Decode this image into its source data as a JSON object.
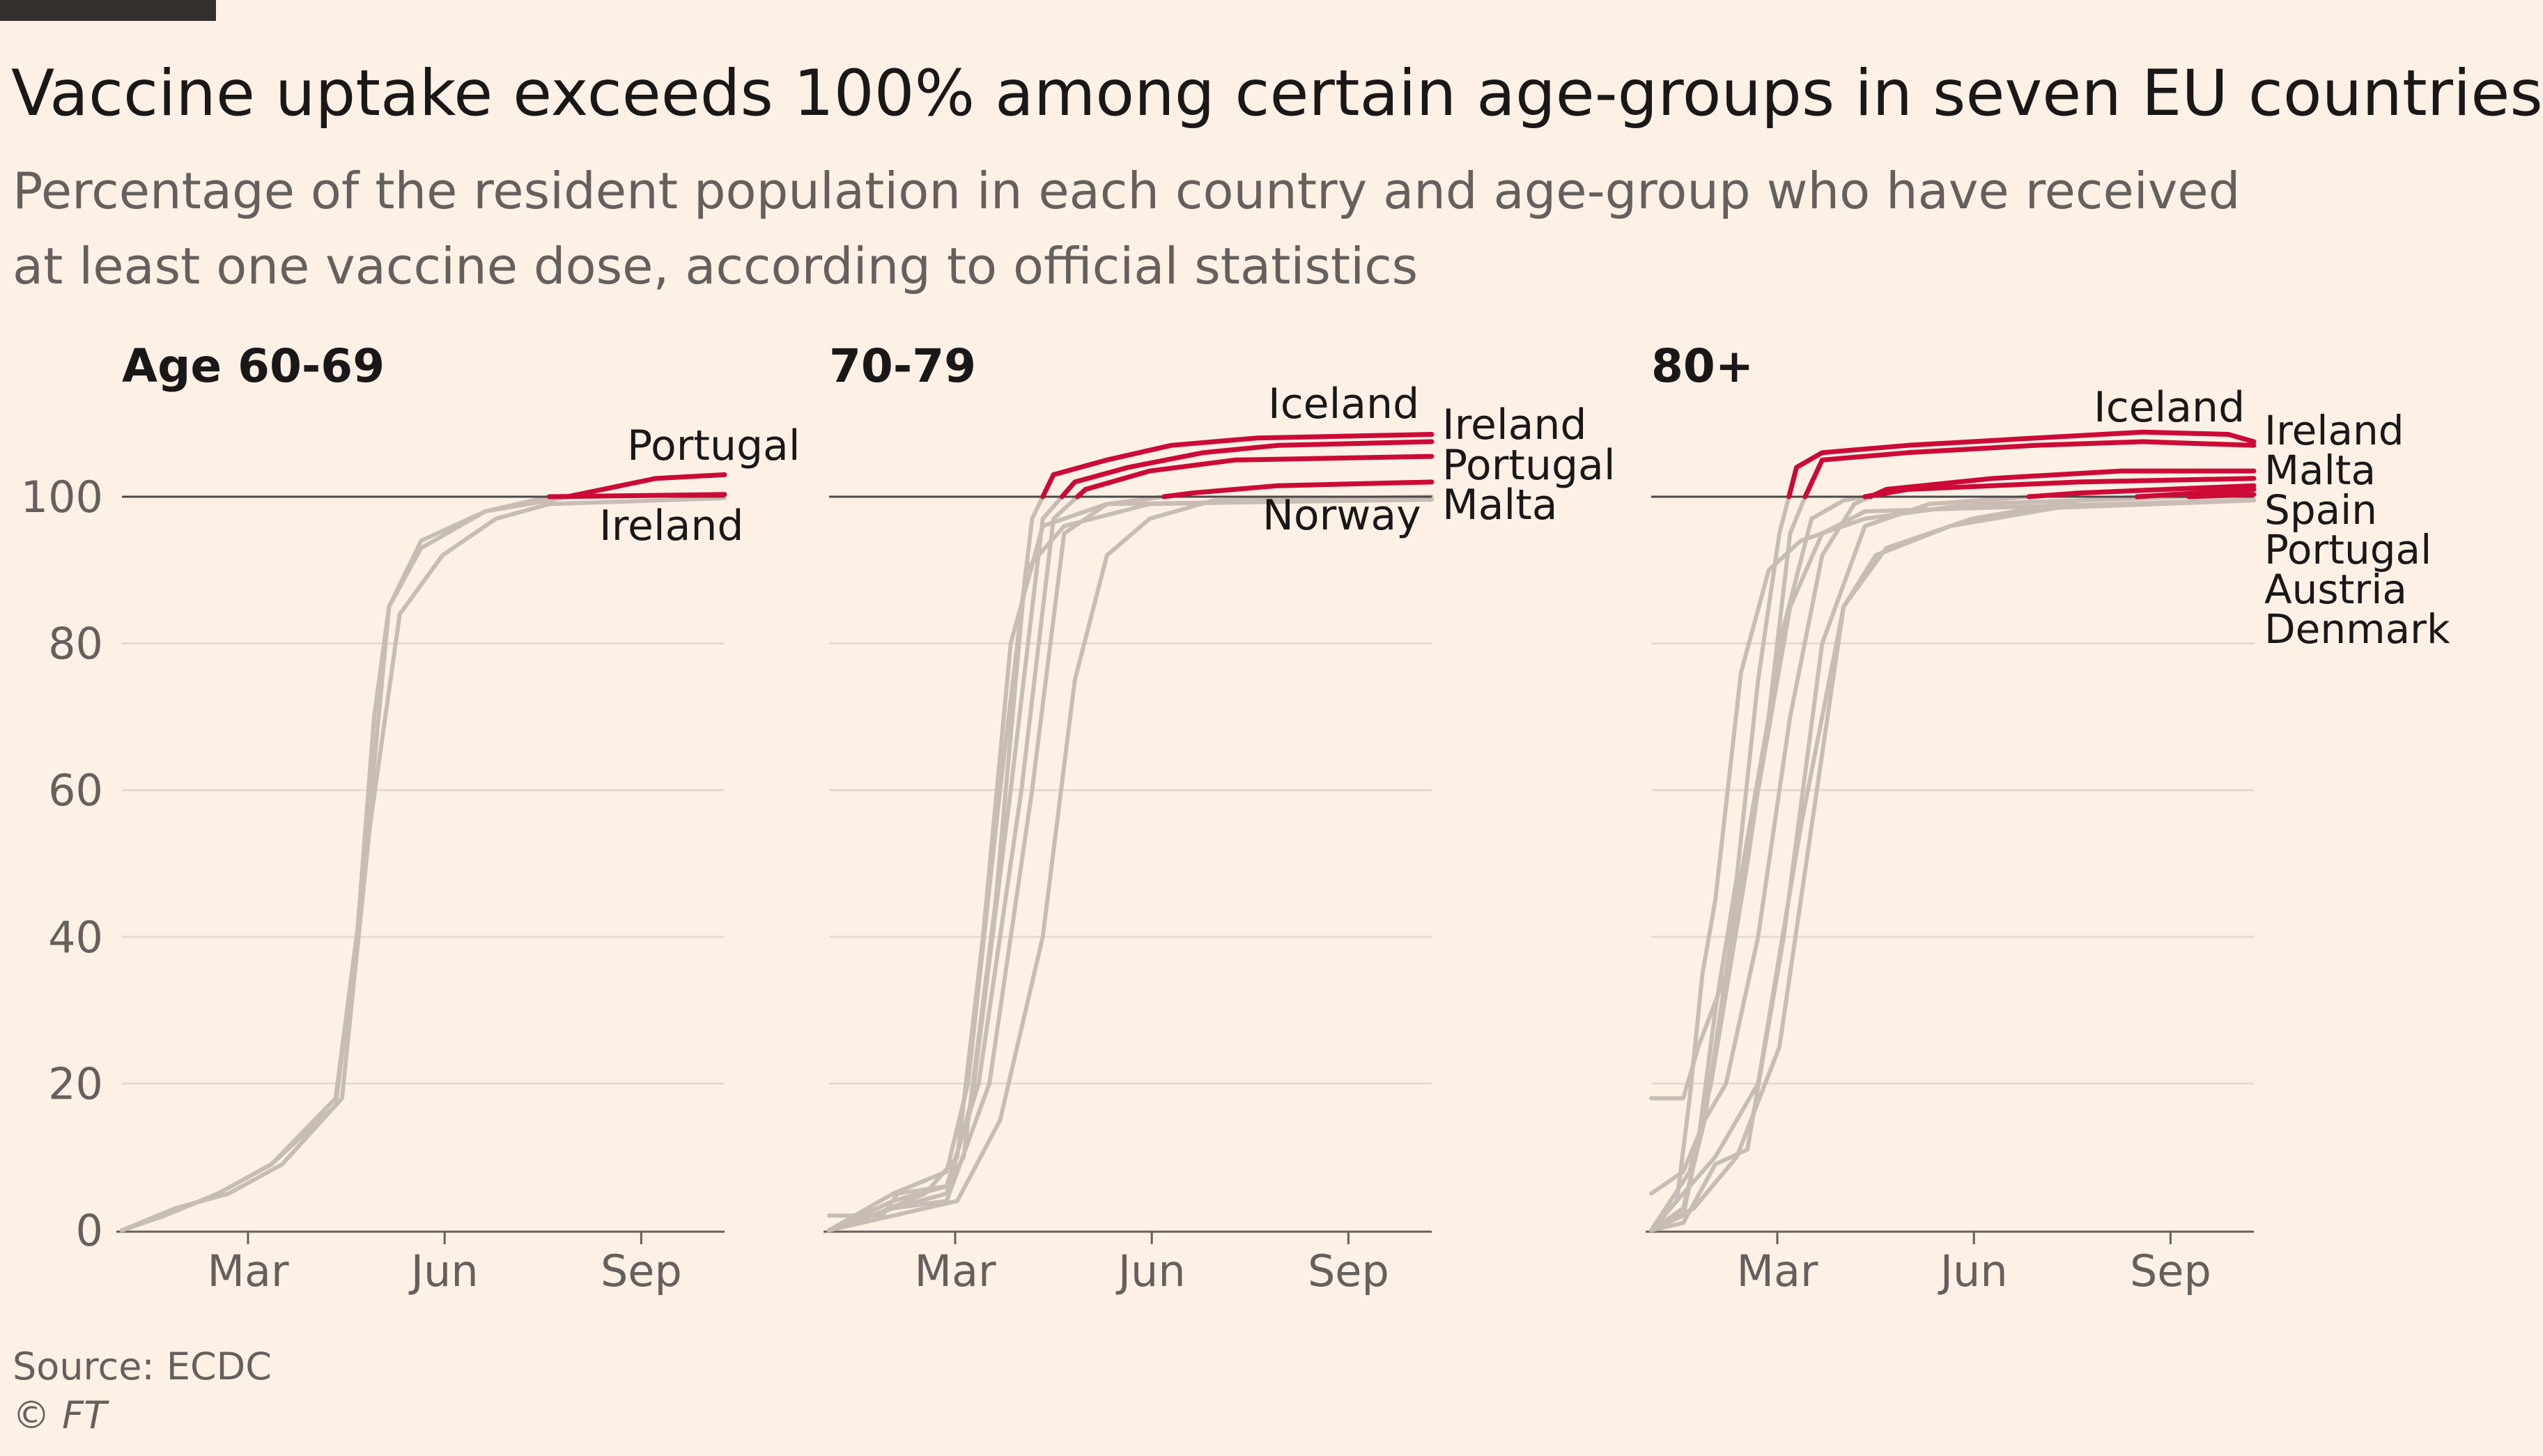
{
  "title": "Vaccine uptake exceeds 100% among certain age-groups in seven EU countries",
  "subtitle": "Percentage of the resident population in each country and age-group who have received at least one vaccine dose, according to official statistics",
  "source": "Source: ECDC",
  "copyright": "© FT",
  "colors": {
    "background": "#fdf1e6",
    "highlight": "#cc0a35",
    "other": "#c8bdb4",
    "gridline": "#e6d9ce",
    "reference_line": "#4d4845",
    "text": "#33302e",
    "muted_text": "#66605c"
  },
  "chart_data": [
    {
      "type": "line",
      "panel_title": "Age 60-69",
      "x_ticks": [
        [
          "Mar",
          59
        ],
        [
          "Jun",
          151
        ],
        [
          "Sep",
          243
        ]
      ],
      "xlim": [
        0,
        282
      ],
      "ylim": [
        0,
        100
      ],
      "y_ticks": [
        0,
        20,
        40,
        60,
        80,
        100
      ],
      "reference_line": 100,
      "series": [
        {
          "name": "Portugal",
          "highlight": true,
          "points": [
            [
              0,
              0
            ],
            [
              20,
              2
            ],
            [
              45,
              5
            ],
            [
              70,
              9
            ],
            [
              100,
              18
            ],
            [
              112,
              45
            ],
            [
              125,
              85
            ],
            [
              140,
              94
            ],
            [
              170,
              98
            ],
            [
              200,
              99.5
            ],
            [
              225,
              101
            ],
            [
              250,
              102.5
            ],
            [
              282,
              103
            ]
          ]
        },
        {
          "name": "Ireland",
          "highlight": true,
          "points": [
            [
              0,
              0
            ],
            [
              20,
              2
            ],
            [
              45,
              5
            ],
            [
              70,
              9
            ],
            [
              100,
              17
            ],
            [
              110,
              40
            ],
            [
              118,
              70
            ],
            [
              125,
              85
            ],
            [
              140,
              93
            ],
            [
              170,
              98
            ],
            [
              200,
              100
            ],
            [
              282,
              100.3
            ]
          ]
        },
        {
          "points": [
            [
              0,
              0
            ],
            [
              25,
              3
            ],
            [
              50,
              5
            ],
            [
              75,
              9
            ],
            [
              103,
              18
            ],
            [
              116,
              55
            ],
            [
              130,
              84
            ],
            [
              150,
              92
            ],
            [
              175,
              97
            ],
            [
              200,
              99
            ],
            [
              282,
              99.8
            ]
          ]
        }
      ]
    },
    {
      "type": "line",
      "panel_title": "70-79",
      "x_ticks": [
        [
          "Mar",
          59
        ],
        [
          "Jun",
          151
        ],
        [
          "Sep",
          243
        ]
      ],
      "xlim": [
        0,
        282
      ],
      "ylim": [
        0,
        100
      ],
      "y_ticks": [
        0,
        20,
        40,
        60,
        80,
        100
      ],
      "reference_line": 100,
      "series": [
        {
          "name": "Iceland",
          "highlight": true,
          "points": [
            [
              0,
              0
            ],
            [
              30,
              5
            ],
            [
              55,
              8
            ],
            [
              65,
              20
            ],
            [
              80,
              60
            ],
            [
              95,
              97
            ],
            [
              105,
              103
            ],
            [
              130,
              105
            ],
            [
              160,
              107
            ],
            [
              200,
              108
            ],
            [
              282,
              108.5
            ]
          ]
        },
        {
          "name": "Ireland",
          "highlight": true,
          "points": [
            [
              0,
              0
            ],
            [
              30,
              3
            ],
            [
              55,
              5
            ],
            [
              67,
              18
            ],
            [
              85,
              60
            ],
            [
              100,
              97
            ],
            [
              115,
              102
            ],
            [
              140,
              104
            ],
            [
              175,
              106
            ],
            [
              210,
              107
            ],
            [
              282,
              107.5
            ]
          ]
        },
        {
          "name": "Portugal",
          "highlight": true,
          "points": [
            [
              0,
              0
            ],
            [
              30,
              4
            ],
            [
              55,
              6
            ],
            [
              70,
              20
            ],
            [
              90,
              60
            ],
            [
              105,
              97
            ],
            [
              120,
              101
            ],
            [
              150,
              103.5
            ],
            [
              190,
              105
            ],
            [
              282,
              105.5
            ]
          ]
        },
        {
          "name": "Malta",
          "highlight": true,
          "points": [
            [
              0,
              0
            ],
            [
              30,
              3
            ],
            [
              55,
              4
            ],
            [
              75,
              20
            ],
            [
              95,
              60
            ],
            [
              110,
              95
            ],
            [
              130,
              99
            ],
            [
              170,
              100.5
            ],
            [
              210,
              101.5
            ],
            [
              282,
              102
            ]
          ]
        },
        {
          "name": "Norway",
          "points": [
            [
              0,
              0
            ],
            [
              30,
              2
            ],
            [
              60,
              4
            ],
            [
              80,
              15
            ],
            [
              100,
              40
            ],
            [
              115,
              75
            ],
            [
              130,
              92
            ],
            [
              150,
              97
            ],
            [
              180,
              99.5
            ],
            [
              282,
              100
            ]
          ]
        },
        {
          "points": [
            [
              0,
              2
            ],
            [
              25,
              2
            ],
            [
              32,
              5
            ],
            [
              55,
              6
            ],
            [
              63,
              10
            ],
            [
              78,
              45
            ],
            [
              92,
              90
            ],
            [
              110,
              96
            ],
            [
              150,
              99
            ],
            [
              282,
              99.7
            ]
          ]
        },
        {
          "points": [
            [
              0,
              0
            ],
            [
              20,
              2
            ],
            [
              45,
              5
            ],
            [
              60,
              10
            ],
            [
              72,
              40
            ],
            [
              85,
              80
            ],
            [
              100,
              96
            ],
            [
              130,
              99
            ],
            [
              282,
              99.6
            ]
          ]
        }
      ]
    },
    {
      "type": "line",
      "panel_title": "80+",
      "x_ticks": [
        [
          "Mar",
          59
        ],
        [
          "Jun",
          151
        ],
        [
          "Sep",
          243
        ]
      ],
      "xlim": [
        0,
        282
      ],
      "ylim": [
        0,
        100
      ],
      "y_ticks": [
        0,
        20,
        40,
        60,
        80,
        100
      ],
      "reference_line": 100,
      "series": [
        {
          "name": "Iceland",
          "highlight": true,
          "points": [
            [
              0,
              0
            ],
            [
              15,
              2
            ],
            [
              22,
              12
            ],
            [
              30,
              30
            ],
            [
              40,
              48
            ],
            [
              50,
              75
            ],
            [
              60,
              95
            ],
            [
              68,
              104
            ],
            [
              80,
              106
            ],
            [
              120,
              107
            ],
            [
              180,
              108
            ],
            [
              230,
              108.8
            ],
            [
              270,
              108.5
            ],
            [
              282,
              107.5
            ]
          ]
        },
        {
          "name": "Ireland",
          "highlight": true,
          "points": [
            [
              0,
              0
            ],
            [
              15,
              3
            ],
            [
              25,
              15
            ],
            [
              40,
              45
            ],
            [
              55,
              70
            ],
            [
              65,
              95
            ],
            [
              72,
              100
            ],
            [
              80,
              105
            ],
            [
              120,
              106
            ],
            [
              180,
              107
            ],
            [
              230,
              107.5
            ],
            [
              282,
              107
            ]
          ]
        },
        {
          "name": "Malta",
          "highlight": true,
          "points": [
            [
              0,
              5
            ],
            [
              15,
              8
            ],
            [
              25,
              15
            ],
            [
              35,
              20
            ],
            [
              50,
              40
            ],
            [
              65,
              70
            ],
            [
              80,
              92
            ],
            [
              95,
              99
            ],
            [
              110,
              101
            ],
            [
              160,
              102.5
            ],
            [
              220,
              103.5
            ],
            [
              282,
              103.5
            ]
          ]
        },
        {
          "name": "Spain",
          "highlight": true,
          "points": [
            [
              0,
              0
            ],
            [
              18,
              8
            ],
            [
              28,
              20
            ],
            [
              45,
              50
            ],
            [
              60,
              80
            ],
            [
              75,
              97
            ],
            [
              90,
              99.5
            ],
            [
              120,
              101
            ],
            [
              200,
              102
            ],
            [
              282,
              102.5
            ]
          ]
        },
        {
          "name": "Portugal",
          "highlight": true,
          "points": [
            [
              0,
              0
            ],
            [
              15,
              1
            ],
            [
              30,
              9
            ],
            [
              45,
              11
            ],
            [
              62,
              40
            ],
            [
              80,
              80
            ],
            [
              100,
              96
            ],
            [
              130,
              99
            ],
            [
              200,
              100.5
            ],
            [
              282,
              101.5
            ]
          ]
        },
        {
          "name": "Austria",
          "highlight": true,
          "points": [
            [
              0,
              0
            ],
            [
              15,
              5
            ],
            [
              30,
              10
            ],
            [
              50,
              20
            ],
            [
              70,
              55
            ],
            [
              90,
              85
            ],
            [
              110,
              93
            ],
            [
              150,
              97
            ],
            [
              200,
              99.5
            ],
            [
              282,
              101
            ]
          ]
        },
        {
          "name": "Denmark",
          "highlight": true,
          "points": [
            [
              0,
              0
            ],
            [
              12,
              4
            ],
            [
              18,
              18
            ],
            [
              24,
              35
            ],
            [
              30,
              45
            ],
            [
              42,
              76
            ],
            [
              55,
              90
            ],
            [
              70,
              94
            ],
            [
              100,
              97
            ],
            [
              150,
              99
            ],
            [
              282,
              100.3
            ]
          ]
        },
        {
          "points": [
            [
              0,
              18
            ],
            [
              15,
              18
            ],
            [
              22,
              25
            ],
            [
              35,
              35
            ],
            [
              50,
              60
            ],
            [
              65,
              85
            ],
            [
              80,
              95
            ],
            [
              100,
              98
            ],
            [
              282,
              99.6
            ]
          ]
        },
        {
          "points": [
            [
              0,
              0
            ],
            [
              20,
              3
            ],
            [
              40,
              10
            ],
            [
              60,
              25
            ],
            [
              75,
              55
            ],
            [
              90,
              85
            ],
            [
              105,
              92
            ],
            [
              140,
              96
            ],
            [
              190,
              98.5
            ],
            [
              282,
              99.5
            ]
          ]
        }
      ],
      "labels_right": [
        "Ireland",
        "Malta",
        "Spain",
        "Portugal",
        "Austria",
        "Denmark"
      ]
    }
  ]
}
